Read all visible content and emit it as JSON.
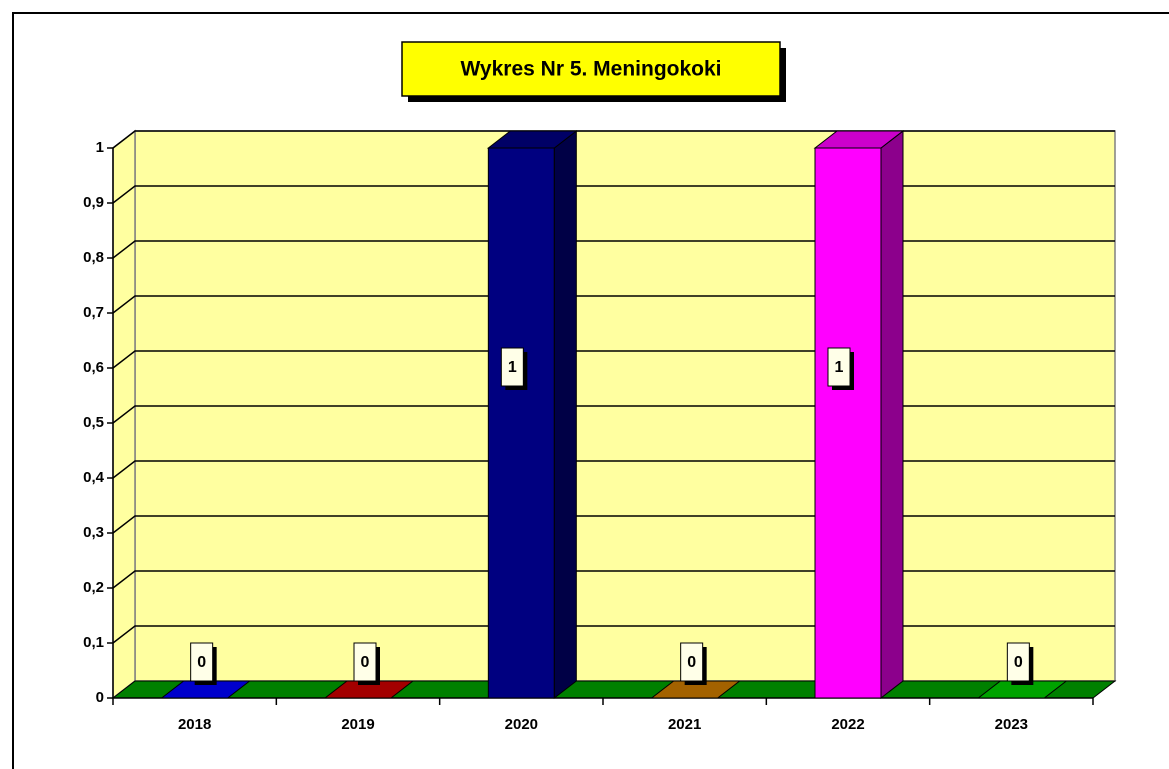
{
  "chart_data": {
    "type": "bar",
    "title": "Wykres Nr 5. Meningokoki",
    "categories": [
      "2018",
      "2019",
      "2020",
      "2021",
      "2022",
      "2023"
    ],
    "values": [
      0,
      0,
      1,
      0,
      1,
      0
    ],
    "colors": [
      "#0000ff",
      "#cc0000",
      "#000080",
      "#cc7a00",
      "#ff00ff",
      "#00cc00"
    ],
    "ylim": [
      0,
      1
    ],
    "yticks": [
      0,
      {
        "value": 0.1,
        "label": "0,1"
      },
      {
        "value": 0.2,
        "label": "0,2"
      },
      {
        "value": 0.3,
        "label": "0,3"
      },
      {
        "value": 0.4,
        "label": "0,4"
      },
      {
        "value": 0.5,
        "label": "0,5"
      },
      {
        "value": 0.6,
        "label": "0,6"
      },
      {
        "value": 0.7,
        "label": "0,7"
      },
      {
        "value": 0.8,
        "label": "0,8"
      },
      {
        "value": 0.9,
        "label": "0,9"
      },
      1
    ],
    "grid": true,
    "background": "#ffffa0",
    "floor_color": "#008000"
  }
}
